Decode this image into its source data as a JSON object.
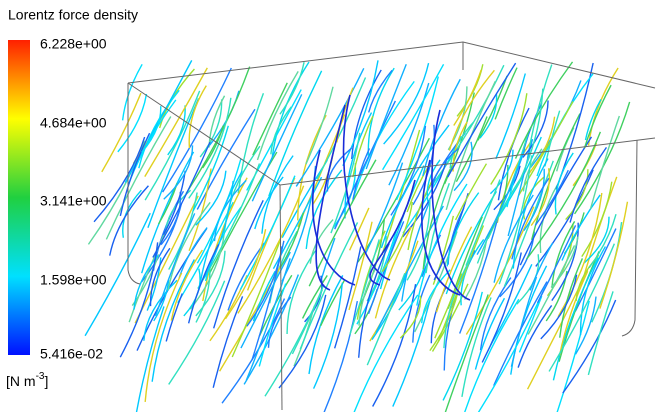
{
  "legend": {
    "title": "Lorentz force density",
    "ticks": [
      "6.228e+00",
      "4.684e+00",
      "3.141e+00",
      "1.598e+00",
      "5.416e-02"
    ],
    "unit": {
      "prefix": "[N m",
      "exponent": "-3",
      "suffix": "]"
    }
  }
}
